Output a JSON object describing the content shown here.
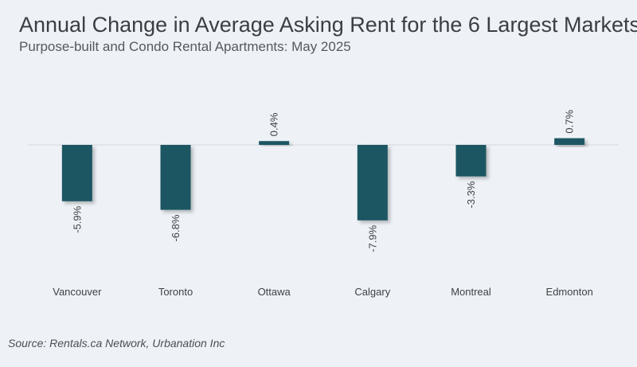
{
  "title": "Annual Change in Average Asking Rent for the 6 Largest Markets",
  "subtitle": "Purpose-built and Condo Rental Apartments: May 2025",
  "source": "Source: Rentals.ca Network, Urbanation Inc",
  "colors": {
    "bar": "#1f5662",
    "zero_line": "#d4d8dd",
    "label": "#3d4247"
  },
  "chart_data": {
    "type": "bar",
    "categories": [
      "Vancouver",
      "Toronto",
      "Ottawa",
      "Calgary",
      "Montreal",
      "Edmonton"
    ],
    "values": [
      -5.9,
      -6.8,
      0.4,
      -7.9,
      -3.3,
      0.7
    ],
    "value_labels": [
      "-5.9%",
      "-6.8%",
      "0.4%",
      "-7.9%",
      "-3.3%",
      "0.7%"
    ],
    "ylim": [
      -8.5,
      1.5
    ],
    "grid": false,
    "data_label_orientation": "vertical"
  }
}
